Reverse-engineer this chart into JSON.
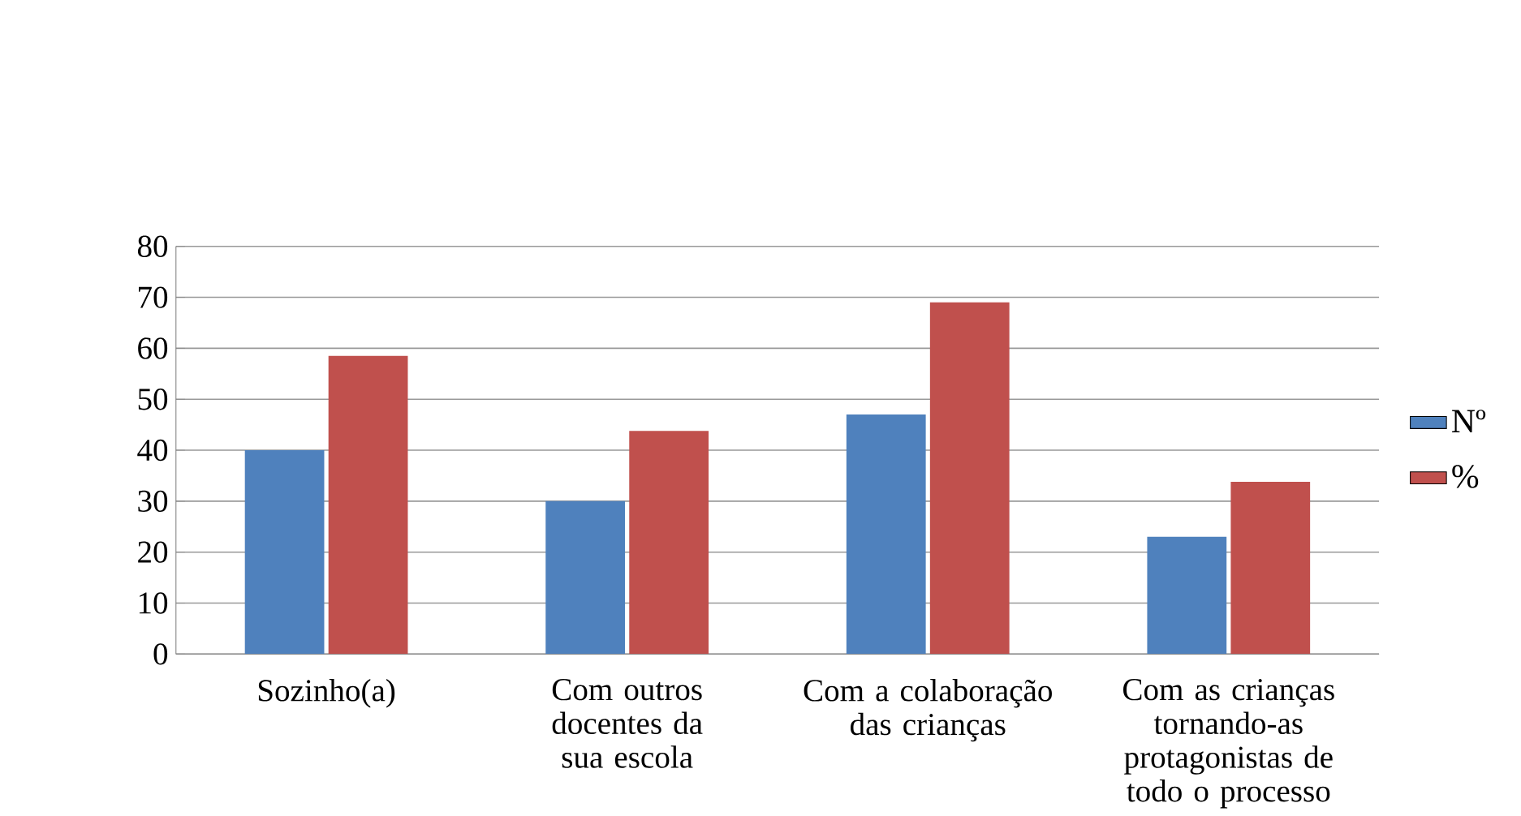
{
  "chart_data": {
    "type": "bar",
    "categories": [
      "Sozinho(a)",
      "Com outros docentes da sua escola",
      "Com a colaboração das crianças",
      "Com as crianças tornando-as protagonistas de todo o processo"
    ],
    "series": [
      {
        "name": "Nº",
        "color": "#4f81bd",
        "values": [
          40,
          30,
          47,
          23
        ]
      },
      {
        "name": "%",
        "color": "#c0504d",
        "values": [
          58.5,
          43.8,
          69,
          33.8
        ]
      }
    ],
    "ylim": [
      0,
      80
    ],
    "yticks": [
      0,
      10,
      20,
      30,
      40,
      50,
      60,
      70,
      80
    ],
    "grid": "y",
    "legend": "right"
  }
}
